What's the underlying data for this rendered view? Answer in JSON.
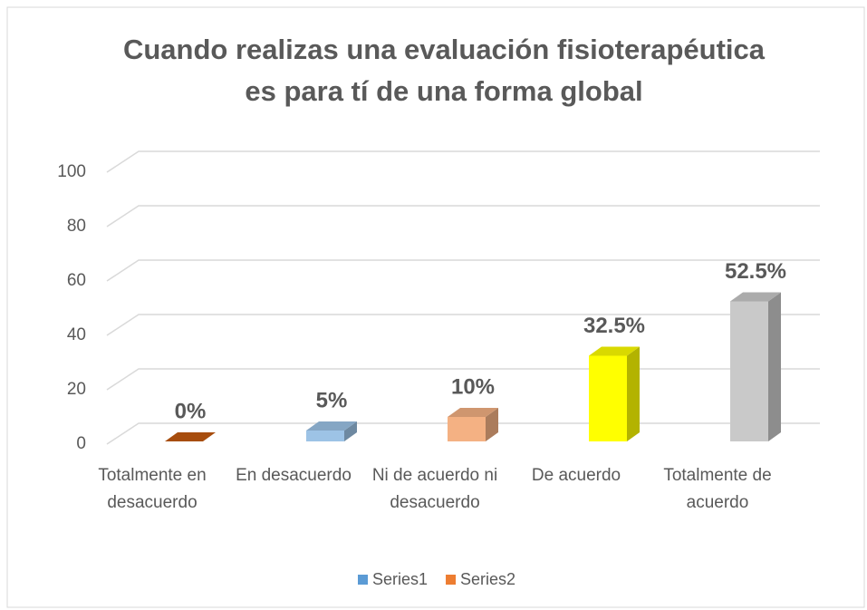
{
  "chart_data": {
    "type": "bar3d",
    "title": "Cuando realizas una evaluación fisioterapéutica es para tí de una forma global",
    "categories": [
      "Totalmente en desacuerdo",
      "En desacuerdo",
      "Ni de acuerdo ni desacuerdo",
      "De acuerdo",
      "Totalmente de acuerdo"
    ],
    "values": [
      0,
      5,
      10,
      32.5,
      52.5
    ],
    "value_labels": [
      "0%",
      "5%",
      "10%",
      "32.5%",
      "52.5%"
    ],
    "colors": [
      "#c55a11",
      "#9dc3e6",
      "#f4b183",
      "#ffff00",
      "#c9c9c9"
    ],
    "ylim": [
      0,
      100
    ],
    "yticks": [
      0,
      20,
      40,
      60,
      80,
      100
    ],
    "grid": true,
    "legend": [
      {
        "name": "Series1",
        "color": "#5b9bd5"
      },
      {
        "name": "Series2",
        "color": "#ed7d31"
      }
    ]
  }
}
